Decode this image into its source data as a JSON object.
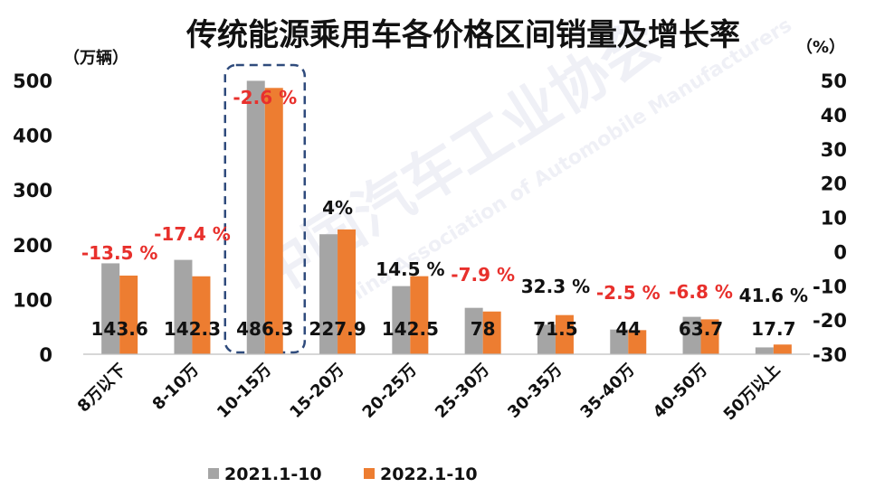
{
  "chart_data": {
    "type": "bar",
    "title": "传统能源乘用车各价格区间销量及增长率",
    "ylabel_left": "（万辆）",
    "ylabel_right": "（%）",
    "ylim_left": [
      0,
      500
    ],
    "yticks_left": [
      "0",
      "100",
      "200",
      "300",
      "400",
      "500"
    ],
    "ylim_right": [
      -30,
      50
    ],
    "yticks_right": [
      "-30",
      "-20",
      "-10",
      "0",
      "10",
      "20",
      "30",
      "40",
      "50"
    ],
    "categories": [
      "8万以下",
      "8-10万",
      "10-15万",
      "15-20万",
      "20-25万",
      "25-30万",
      "30-35万",
      "35-40万",
      "40-50万",
      "50万以上"
    ],
    "series": [
      {
        "name": "2021.1-10",
        "color": "#a5a5a5",
        "values": [
          166.0,
          172.3,
          499.3,
          219.1,
          124.4,
          84.7,
          54.0,
          45.1,
          68.3,
          12.5
        ]
      },
      {
        "name": "2022.1-10",
        "color": "#ed7d31",
        "values": [
          143.6,
          142.3,
          486.3,
          227.9,
          142.5,
          78,
          71.5,
          44,
          63.7,
          17.7
        ]
      }
    ],
    "value_labels": [
      "143.6",
      "142.3",
      "486.3",
      "227.9",
      "142.5",
      "78",
      "71.5",
      "44",
      "63.7",
      "17.7"
    ],
    "growth_rates": [
      "-13.5 %",
      "-17.4 %",
      "-2.6 %",
      "4%",
      "14.5 %",
      "-7.9 %",
      "32.3 %",
      "-2.5 %",
      "-6.8 %",
      "41.6 %"
    ],
    "growth_colors": [
      "#e8302c",
      "#e8302c",
      "#e8302c",
      "#111111",
      "#111111",
      "#e8302c",
      "#111111",
      "#e8302c",
      "#e8302c",
      "#111111"
    ],
    "highlight_category": "10-15万",
    "highlight_color": "#2f4b7c",
    "legend_position": "bottom",
    "grid": false
  },
  "watermark": {
    "text": "中国汽车工业协会",
    "subtext": "China Association of Automobile Manufacturers"
  }
}
